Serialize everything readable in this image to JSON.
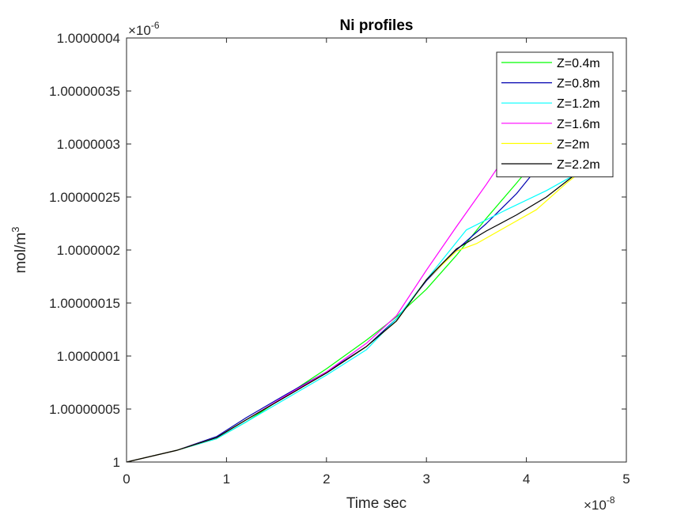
{
  "chart_data": {
    "type": "line",
    "title": "Ni profiles",
    "xlabel": "Time sec",
    "ylabel_base": "mol/m",
    "ylabel_exp": "3",
    "x_multiplier_base": "×10",
    "x_multiplier_exp": "-8",
    "y_multiplier_base": "×10",
    "y_multiplier_exp": "-6",
    "xlim": [
      0,
      5
    ],
    "ylim": [
      1,
      1.0000004
    ],
    "x_ticks": [
      0,
      1,
      2,
      3,
      4,
      5
    ],
    "x_tick_labels": [
      "0",
      "1",
      "2",
      "3",
      "4",
      "5"
    ],
    "y_ticks": [
      1,
      1.00000005,
      1.0000001,
      1.00000015,
      1.0000002,
      1.00000025,
      1.0000003,
      1.00000035,
      1.0000004
    ],
    "y_tick_labels": [
      "1",
      "1.00000005",
      "1.0000001",
      "1.00000015",
      "1.0000002",
      "1.00000025",
      "1.0000003",
      "1.00000035",
      "1.0000004"
    ],
    "grid": false,
    "legend_position": "top-right",
    "series": [
      {
        "name": "Z=0.4m",
        "color": "#00ff00",
        "x": [
          0,
          0.5,
          0.9,
          1.2,
          1.6,
          2.0,
          2.4,
          2.7,
          3.0,
          3.3,
          3.6,
          3.9,
          4.2
        ],
        "y": [
          1,
          1.000000011,
          1.000000022,
          1.000000038,
          1.000000063,
          1.000000088,
          1.000000115,
          1.000000137,
          1.000000163,
          1.000000195,
          1.00000023,
          1.000000263,
          1.000000297
        ]
      },
      {
        "name": "Z=0.8m",
        "color": "#0000b0",
        "x": [
          0,
          0.5,
          0.9,
          1.2,
          1.6,
          2.0,
          2.4,
          2.7,
          3.0,
          3.3,
          3.6,
          3.9,
          4.2
        ],
        "y": [
          1,
          1.000000011,
          1.000000024,
          1.000000042,
          1.000000064,
          1.000000085,
          1.000000109,
          1.000000135,
          1.000000171,
          1.0000002,
          1.000000225,
          1.000000253,
          1.000000288
        ]
      },
      {
        "name": "Z=1.2m",
        "color": "#00ffff",
        "x": [
          0,
          0.5,
          0.9,
          1.2,
          1.6,
          2.0,
          2.4,
          2.7,
          3.0,
          3.4,
          3.8,
          4.2,
          4.6
        ],
        "y": [
          1,
          1.000000011,
          1.000000022,
          1.000000038,
          1.00000006,
          1.000000082,
          1.000000106,
          1.000000135,
          1.000000172,
          1.000000219,
          1.000000238,
          1.000000256,
          1.000000277
        ]
      },
      {
        "name": "Z=1.6m",
        "color": "#ff00ff",
        "x": [
          0,
          0.5,
          0.9,
          1.2,
          1.6,
          2.0,
          2.4,
          2.7,
          3.0,
          3.3,
          3.6,
          3.8
        ],
        "y": [
          1,
          1.000000011,
          1.000000023,
          1.00000004,
          1.000000063,
          1.000000085,
          1.000000112,
          1.000000138,
          1.000000181,
          1.000000222,
          1.000000262,
          1.00000029
        ]
      },
      {
        "name": "Z=2m",
        "color": "#ffff00",
        "x": [
          0,
          0.5,
          0.9,
          1.2,
          1.6,
          2.0,
          2.4,
          2.7,
          3.0,
          3.3,
          3.5,
          3.8,
          4.1,
          4.4,
          4.6
        ],
        "y": [
          1,
          1.000000011,
          1.000000023,
          1.00000004,
          1.000000062,
          1.000000084,
          1.000000109,
          1.000000133,
          1.000000172,
          1.000000199,
          1.000000206,
          1.000000222,
          1.000000238,
          1.000000263,
          1.000000278
        ]
      },
      {
        "name": "Z=2.2m",
        "color": "#000000",
        "x": [
          0,
          0.5,
          0.9,
          1.2,
          1.6,
          2.0,
          2.4,
          2.7,
          3.0,
          3.3,
          3.6,
          3.9,
          4.2,
          4.5,
          4.6
        ],
        "y": [
          1,
          1.000000011,
          1.000000023,
          1.00000004,
          1.000000062,
          1.000000084,
          1.000000109,
          1.000000133,
          1.000000172,
          1.000000201,
          1.000000218,
          1.000000233,
          1.00000025,
          1.000000272,
          1.000000279
        ]
      }
    ]
  }
}
